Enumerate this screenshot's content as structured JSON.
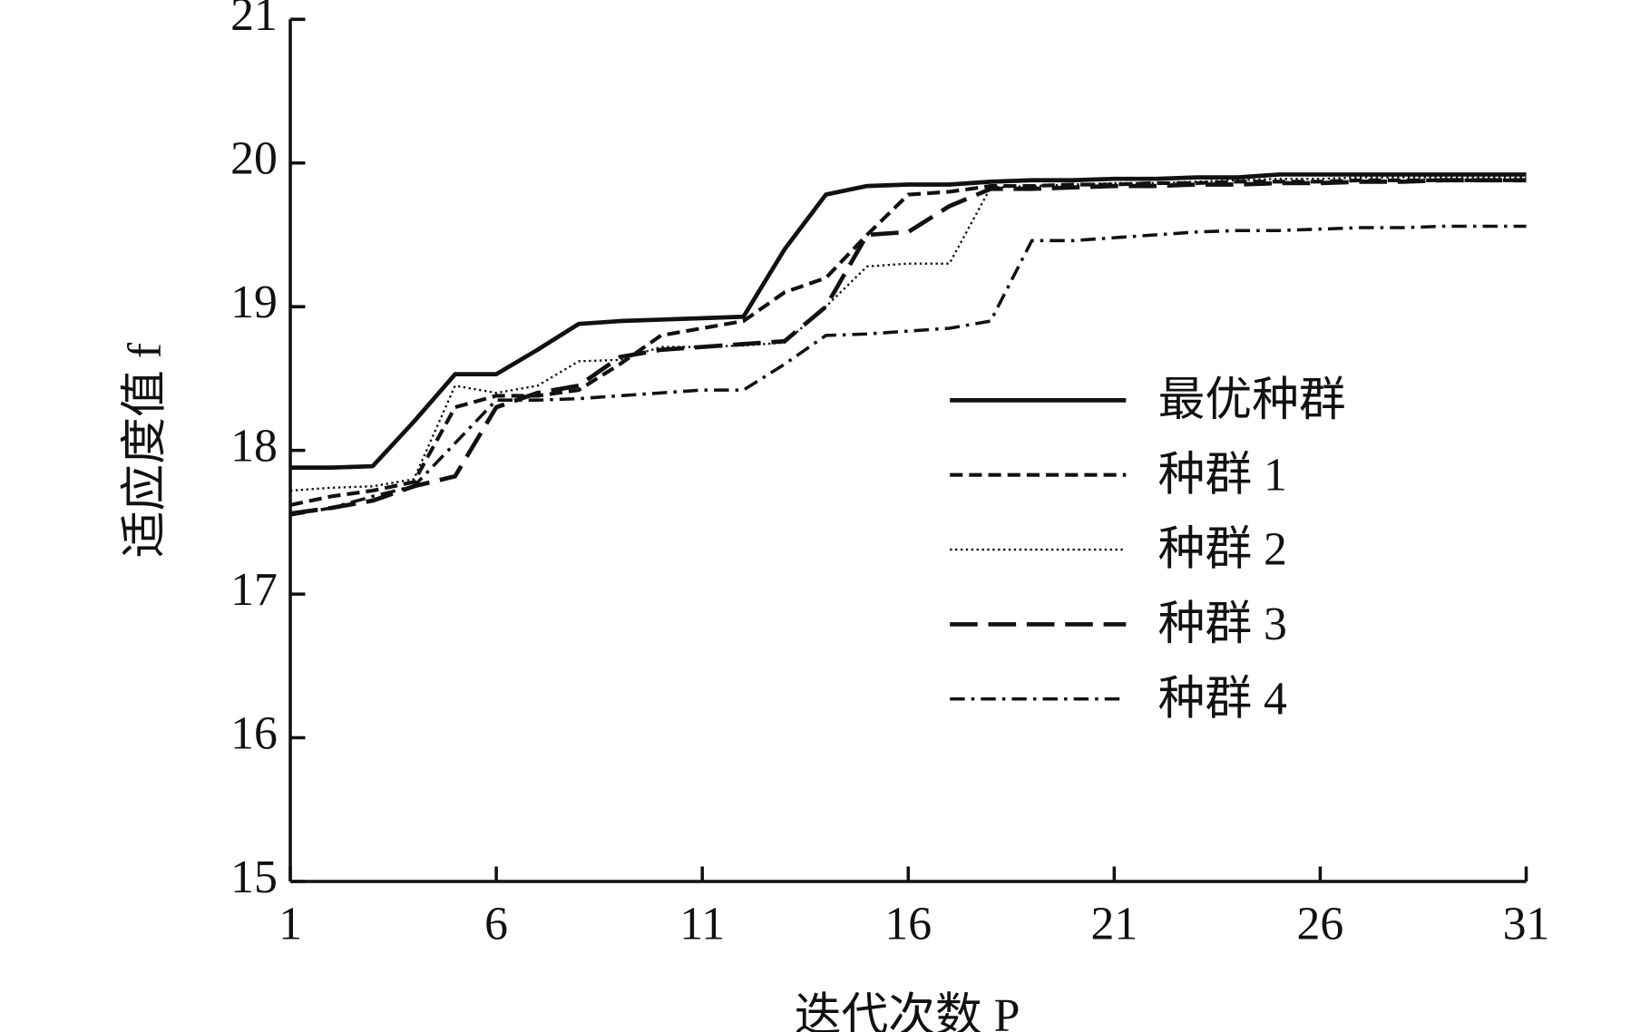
{
  "chart_data": {
    "type": "line",
    "x_label": "迭代次数 P",
    "y_label": "适应度值 f",
    "x": [
      1,
      2,
      3,
      4,
      5,
      6,
      7,
      8,
      9,
      10,
      11,
      12,
      13,
      14,
      15,
      16,
      17,
      18,
      19,
      20,
      21,
      22,
      23,
      24,
      25,
      26,
      27,
      28,
      29,
      30,
      31
    ],
    "series": [
      {
        "name": "最优种群",
        "color": "#111111",
        "line_style": "solid",
        "values": [
          17.88,
          17.88,
          17.89,
          18.2,
          18.53,
          18.53,
          18.7,
          18.88,
          18.9,
          18.91,
          18.92,
          18.93,
          19.4,
          19.78,
          19.84,
          19.85,
          19.85,
          19.87,
          19.88,
          19.88,
          19.89,
          19.89,
          19.9,
          19.9,
          19.92,
          19.92,
          19.92,
          19.92,
          19.92,
          19.92,
          19.92
        ]
      },
      {
        "name": "种群 1",
        "color": "#111111",
        "line_style": "dashed",
        "values": [
          17.62,
          17.68,
          17.72,
          17.78,
          18.3,
          18.38,
          18.38,
          18.42,
          18.6,
          18.8,
          18.85,
          18.9,
          19.1,
          19.2,
          19.5,
          19.78,
          19.8,
          19.84,
          19.84,
          19.85,
          19.85,
          19.86,
          19.86,
          19.87,
          19.87,
          19.87,
          19.88,
          19.88,
          19.88,
          19.88,
          19.88
        ]
      },
      {
        "name": "种群 2",
        "color": "#111111",
        "line_style": "dotted",
        "values": [
          17.72,
          17.74,
          17.75,
          17.8,
          18.45,
          18.4,
          18.45,
          18.62,
          18.63,
          18.72,
          18.72,
          18.73,
          18.75,
          19.0,
          19.28,
          19.3,
          19.3,
          19.83,
          19.84,
          19.85,
          19.86,
          19.86,
          19.87,
          19.88,
          19.89,
          19.89,
          19.9,
          19.9,
          19.9,
          19.9,
          19.9
        ]
      },
      {
        "name": "种群 3",
        "color": "#111111",
        "line_style": "long-dash",
        "values": [
          17.56,
          17.6,
          17.65,
          17.75,
          17.82,
          18.3,
          18.4,
          18.45,
          18.65,
          18.7,
          18.72,
          18.74,
          18.76,
          19.0,
          19.5,
          19.52,
          19.7,
          19.82,
          19.82,
          19.83,
          19.84,
          19.84,
          19.85,
          19.85,
          19.86,
          19.86,
          19.87,
          19.87,
          19.88,
          19.88,
          19.88
        ]
      },
      {
        "name": "种群 4",
        "color": "#111111",
        "line_style": "dash-dot",
        "values": [
          17.55,
          17.6,
          17.68,
          17.75,
          18.05,
          18.35,
          18.35,
          18.36,
          18.38,
          18.4,
          18.42,
          18.42,
          18.6,
          18.8,
          18.81,
          18.83,
          18.85,
          18.9,
          19.46,
          19.46,
          19.48,
          19.5,
          19.52,
          19.53,
          19.53,
          19.54,
          19.55,
          19.55,
          19.56,
          19.56,
          19.56
        ]
      }
    ],
    "xlim": [
      1,
      31
    ],
    "xticks": [
      1,
      6,
      11,
      16,
      21,
      26,
      31
    ],
    "ylim": [
      15,
      21
    ],
    "yticks": [
      15,
      16,
      17,
      18,
      19,
      20,
      21
    ],
    "legend": "right"
  }
}
